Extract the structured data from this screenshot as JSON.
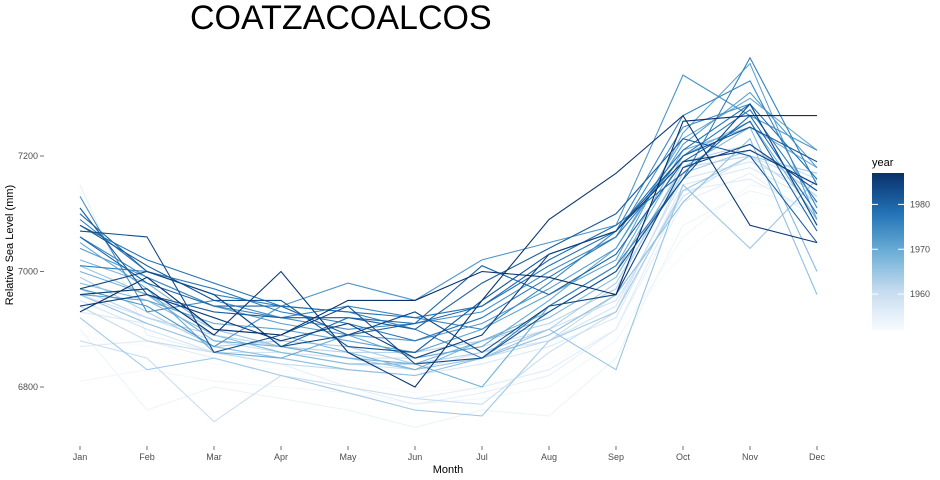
{
  "chart_data": {
    "type": "line",
    "title": "COATZACOALCOS",
    "xlabel": "Month",
    "ylabel": "Relative Sea Level (mm)",
    "categories": [
      "Jan",
      "Feb",
      "Mar",
      "Apr",
      "May",
      "Jun",
      "Jul",
      "Aug",
      "Sep",
      "Oct",
      "Nov",
      "Dec"
    ],
    "ylim": [
      6720,
      7370
    ],
    "yticks": [
      6800,
      7000,
      7200
    ],
    "grid": false,
    "legend": {
      "title": "year",
      "placement": "right",
      "range": [
        1952,
        1987
      ],
      "ticks": [
        1960,
        1970,
        1980
      ],
      "color_low": "#f7fbff",
      "color_high": "#08306b"
    },
    "series": [
      {
        "year": 1952,
        "values": [
          6890,
          6870,
          6840,
          6830,
          6810,
          6790,
          6800,
          6840,
          6900,
          7030,
          7120,
          7100
        ]
      },
      {
        "year": 1953,
        "values": [
          6810,
          6830,
          6810,
          6800,
          6790,
          6770,
          6780,
          6800,
          6880,
          7060,
          7150,
          7130
        ]
      },
      {
        "year": 1954,
        "values": [
          6900,
          6760,
          6800,
          6780,
          6760,
          6730,
          6760,
          6750,
          6850,
          7080,
          7140,
          7110
        ]
      },
      {
        "year": 1955,
        "values": [
          7150,
          6890,
          6860,
          6840,
          6800,
          6770,
          6790,
          6820,
          6900,
          7120,
          7170,
          7090
        ]
      },
      {
        "year": 1956,
        "values": [
          6870,
          6880,
          6850,
          6820,
          6800,
          6780,
          6800,
          6830,
          6900,
          7140,
          7160,
          7100
        ]
      },
      {
        "year": 1957,
        "values": [
          6930,
          6910,
          6870,
          6850,
          6830,
          6820,
          6840,
          6870,
          6920,
          7150,
          7180,
          7120
        ]
      },
      {
        "year": 1958,
        "values": [
          6950,
          6900,
          6860,
          6860,
          6840,
          6830,
          6860,
          6880,
          6940,
          7160,
          7190,
          7140
        ]
      },
      {
        "year": 1959,
        "values": [
          6960,
          6920,
          6880,
          6860,
          6850,
          6850,
          6870,
          6900,
          6950,
          7130,
          7200,
          7150
        ]
      },
      {
        "year": 1960,
        "values": [
          6880,
          6850,
          6740,
          6820,
          6800,
          6780,
          6770,
          6860,
          6930,
          7170,
          7210,
          7160
        ]
      },
      {
        "year": 1961,
        "values": [
          6940,
          6880,
          6860,
          6840,
          6830,
          6820,
          6850,
          6880,
          6960,
          7180,
          7200,
          7120
        ]
      },
      {
        "year": 1962,
        "values": [
          6970,
          6920,
          6890,
          6870,
          6860,
          6860,
          6880,
          6910,
          6970,
          7190,
          7220,
          7130
        ]
      },
      {
        "year": 1963,
        "values": [
          6990,
          6930,
          6870,
          6880,
          6870,
          6840,
          6860,
          6900,
          6980,
          7170,
          7210,
          7150
        ]
      },
      {
        "year": 1964,
        "values": [
          6920,
          6830,
          6850,
          6820,
          6790,
          6760,
          6750,
          6880,
          6930,
          7140,
          7200,
          7170
        ]
      },
      {
        "year": 1965,
        "values": [
          7010,
          6960,
          6900,
          6870,
          6850,
          6830,
          6850,
          6900,
          6830,
          7150,
          7040,
          7160
        ]
      },
      {
        "year": 1966,
        "values": [
          6960,
          6910,
          6870,
          6850,
          6830,
          6820,
          6850,
          6890,
          6960,
          7120,
          7230,
          6960
        ]
      },
      {
        "year": 1967,
        "values": [
          6980,
          6950,
          6890,
          6860,
          6840,
          6840,
          6880,
          6920,
          6990,
          7180,
          7250,
          7000
        ]
      },
      {
        "year": 1968,
        "values": [
          7020,
          6980,
          6900,
          6890,
          6860,
          6830,
          6880,
          6930,
          7000,
          7200,
          7260,
          7090
        ]
      },
      {
        "year": 1969,
        "values": [
          7000,
          6960,
          6880,
          6870,
          6850,
          6840,
          6800,
          6940,
          7010,
          7210,
          7250,
          7180
        ]
      },
      {
        "year": 1970,
        "values": [
          7050,
          6970,
          6860,
          6850,
          6890,
          6850,
          6870,
          6950,
          7040,
          7230,
          7300,
          7210
        ]
      },
      {
        "year": 1971,
        "values": [
          6960,
          6950,
          6910,
          6900,
          6880,
          6860,
          6900,
          6960,
          7020,
          7240,
          7360,
          7090
        ]
      },
      {
        "year": 1972,
        "values": [
          7040,
          6990,
          6940,
          6910,
          6890,
          6880,
          6910,
          6970,
          7040,
          7220,
          7310,
          7180
        ]
      },
      {
        "year": 1973,
        "values": [
          6970,
          6940,
          6870,
          6940,
          6980,
          6950,
          7020,
          7050,
          7080,
          7340,
          7270,
          7210
        ]
      },
      {
        "year": 1974,
        "values": [
          7130,
          6930,
          6950,
          6920,
          6900,
          6910,
          6930,
          7000,
          7060,
          7250,
          7290,
          7080
        ]
      },
      {
        "year": 1975,
        "values": [
          7060,
          6990,
          6940,
          6920,
          6940,
          6920,
          6900,
          6980,
          7070,
          7270,
          7330,
          7110
        ]
      },
      {
        "year": 1976,
        "values": [
          7010,
          7000,
          6960,
          6940,
          6930,
          6900,
          6850,
          6940,
          7010,
          7160,
          7370,
          7150
        ]
      },
      {
        "year": 1977,
        "values": [
          7090,
          7000,
          6970,
          6930,
          6910,
          6880,
          6920,
          6990,
          7060,
          7200,
          7280,
          7120
        ]
      },
      {
        "year": 1978,
        "values": [
          7080,
          7020,
          6980,
          6940,
          6930,
          6920,
          6940,
          7010,
          7070,
          7210,
          7290,
          7160
        ]
      },
      {
        "year": 1979,
        "values": [
          7100,
          7000,
          6960,
          6870,
          6920,
          6910,
          6940,
          7020,
          7080,
          7170,
          7270,
          7100
        ]
      },
      {
        "year": 1980,
        "values": [
          7060,
          6980,
          6940,
          6940,
          6890,
          6910,
          7010,
          6960,
          7030,
          7190,
          7260,
          7070
        ]
      },
      {
        "year": 1981,
        "values": [
          7110,
          6960,
          6930,
          6920,
          6920,
          6900,
          6980,
          7040,
          7100,
          7230,
          7200,
          7050
        ]
      },
      {
        "year": 1982,
        "values": [
          7080,
          7010,
          6950,
          6950,
          6870,
          6860,
          6950,
          7030,
          7070,
          7200,
          7250,
          7190
        ]
      },
      {
        "year": 1983,
        "values": [
          7070,
          7060,
          6860,
          6890,
          6940,
          6840,
          6850,
          6930,
          7000,
          7160,
          7290,
          7080
        ]
      },
      {
        "year": 1984,
        "values": [
          6970,
          7000,
          6960,
          6870,
          6890,
          6930,
          6860,
          6940,
          6960,
          7180,
          7220,
          7140
        ]
      },
      {
        "year": 1985,
        "values": [
          6940,
          6960,
          6920,
          6880,
          6910,
          6850,
          6890,
          7030,
          7070,
          7190,
          7210,
          7150
        ]
      },
      {
        "year": 1986,
        "values": [
          6960,
          6970,
          6890,
          7000,
          6860,
          6800,
          6950,
          7090,
          7170,
          7270,
          7080,
          7050
        ]
      },
      {
        "year": 1987,
        "values": [
          6930,
          6990,
          6900,
          6890,
          6950,
          6950,
          7000,
          6990,
          6960,
          7260,
          7270,
          7270
        ]
      }
    ]
  }
}
